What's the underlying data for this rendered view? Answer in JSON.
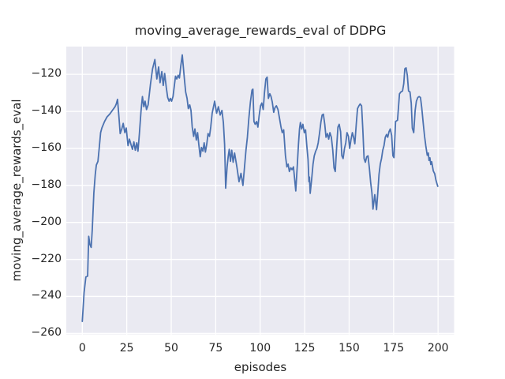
{
  "figure": {
    "title": "moving_average_rewards_eval of DDPG",
    "xlabel": "episodes",
    "ylabel": "moving_average_rewards_eval"
  },
  "chart_data": {
    "type": "line",
    "title": "moving_average_rewards_eval of DDPG",
    "xlabel": "episodes",
    "ylabel": "moving_average_rewards_eval",
    "xlim": [
      -9,
      209
    ],
    "ylim": [
      -260.5,
      -105
    ],
    "x_ticks": [
      0,
      25,
      50,
      75,
      100,
      125,
      150,
      175,
      200
    ],
    "y_ticks": [
      -120,
      -140,
      -160,
      -180,
      -200,
      -220,
      -240,
      -260
    ],
    "grid": true,
    "legend": false,
    "colors": {
      "figure_background": "#ffffff",
      "axes_background": "#eaeaf2",
      "grid": "#ffffff",
      "line": "#4c72b0",
      "text": "#262626"
    },
    "series": [
      {
        "name": "moving_average_rewards_eval",
        "color": "#4c72b0",
        "points": [
          [
            0,
            -253.5
          ],
          [
            1,
            -238
          ],
          [
            2,
            -229.5
          ],
          [
            3,
            -229
          ],
          [
            3.6,
            -207.5
          ],
          [
            4.3,
            -212
          ],
          [
            5,
            -213.5
          ],
          [
            5.6,
            -204
          ],
          [
            6.5,
            -184
          ],
          [
            7.3,
            -174
          ],
          [
            7.9,
            -169
          ],
          [
            8.8,
            -167
          ],
          [
            9.5,
            -160
          ],
          [
            10.3,
            -151.5
          ],
          [
            11,
            -149
          ],
          [
            12.5,
            -145.5
          ],
          [
            13.9,
            -143
          ],
          [
            15.4,
            -141.5
          ],
          [
            16.9,
            -139.5
          ],
          [
            18.4,
            -137.5
          ],
          [
            19.1,
            -136
          ],
          [
            19.8,
            -133.5
          ],
          [
            20.6,
            -143
          ],
          [
            21.3,
            -152
          ],
          [
            22.2,
            -149.5
          ],
          [
            23,
            -146.5
          ],
          [
            23.9,
            -151.5
          ],
          [
            24.7,
            -149
          ],
          [
            25.7,
            -158.5
          ],
          [
            26.5,
            -155
          ],
          [
            27.4,
            -158
          ],
          [
            28.2,
            -160.5
          ],
          [
            29,
            -156.5
          ],
          [
            29.8,
            -161
          ],
          [
            30.6,
            -157
          ],
          [
            31.3,
            -161.5
          ],
          [
            32.1,
            -152
          ],
          [
            33,
            -140
          ],
          [
            33.8,
            -132
          ],
          [
            34.6,
            -137.5
          ],
          [
            35.3,
            -134.5
          ],
          [
            36.1,
            -139
          ],
          [
            37,
            -136.5
          ],
          [
            38.3,
            -125.5
          ],
          [
            39.5,
            -117
          ],
          [
            40.8,
            -112
          ],
          [
            41.9,
            -122.5
          ],
          [
            42.9,
            -116
          ],
          [
            43.7,
            -124.5
          ],
          [
            44.7,
            -118.5
          ],
          [
            45.5,
            -126
          ],
          [
            46.3,
            -119.5
          ],
          [
            47.2,
            -127
          ],
          [
            48,
            -132.5
          ],
          [
            48.8,
            -134.5
          ],
          [
            49.5,
            -133
          ],
          [
            50.2,
            -134.5
          ],
          [
            51,
            -132
          ],
          [
            51.7,
            -126.5
          ],
          [
            52.4,
            -121
          ],
          [
            53.1,
            -122.5
          ],
          [
            53.9,
            -120.5
          ],
          [
            54.6,
            -122
          ],
          [
            55.3,
            -116
          ],
          [
            56.2,
            -109.5
          ],
          [
            57.4,
            -122.5
          ],
          [
            58.1,
            -129.5
          ],
          [
            58.9,
            -133
          ],
          [
            59.6,
            -138.5
          ],
          [
            60.4,
            -136.5
          ],
          [
            61.1,
            -139.5
          ],
          [
            61.8,
            -148.5
          ],
          [
            62.6,
            -153.5
          ],
          [
            63.3,
            -149.5
          ],
          [
            64.1,
            -155.5
          ],
          [
            64.8,
            -151.5
          ],
          [
            65.5,
            -158
          ],
          [
            66.3,
            -164.5
          ],
          [
            67,
            -159.5
          ],
          [
            67.8,
            -161.5
          ],
          [
            68.5,
            -157
          ],
          [
            69.2,
            -162
          ],
          [
            70,
            -157.5
          ],
          [
            70.7,
            -152
          ],
          [
            71.5,
            -153.5
          ],
          [
            72.2,
            -148.5
          ],
          [
            73,
            -141
          ],
          [
            74.4,
            -134.5
          ],
          [
            75.5,
            -141
          ],
          [
            76.5,
            -137.5
          ],
          [
            77.5,
            -142
          ],
          [
            78.5,
            -139.5
          ],
          [
            79.3,
            -146
          ],
          [
            80,
            -158
          ],
          [
            80.6,
            -181.5
          ],
          [
            81.4,
            -170
          ],
          [
            82,
            -164.5
          ],
          [
            82.6,
            -160.5
          ],
          [
            83.3,
            -167
          ],
          [
            84,
            -161
          ],
          [
            84.8,
            -167.5
          ],
          [
            85.6,
            -162.5
          ],
          [
            86.9,
            -170
          ],
          [
            88.1,
            -178
          ],
          [
            89.2,
            -173.5
          ],
          [
            90.3,
            -180
          ],
          [
            91.2,
            -170
          ],
          [
            92,
            -161
          ],
          [
            92.8,
            -154
          ],
          [
            93.6,
            -144
          ],
          [
            94.5,
            -135
          ],
          [
            95.4,
            -128.5
          ],
          [
            95.9,
            -128
          ],
          [
            96.5,
            -145.5
          ],
          [
            97.2,
            -147
          ],
          [
            98,
            -145.5
          ],
          [
            98.7,
            -148.5
          ],
          [
            99.4,
            -142.5
          ],
          [
            100.2,
            -137
          ],
          [
            100.9,
            -135.5
          ],
          [
            101.7,
            -139
          ],
          [
            102.4,
            -130
          ],
          [
            103.2,
            -122.5
          ],
          [
            103.9,
            -121.5
          ],
          [
            104.6,
            -133
          ],
          [
            105.4,
            -130.5
          ],
          [
            106.1,
            -132
          ],
          [
            106.8,
            -135
          ],
          [
            107.6,
            -140.5
          ],
          [
            108.3,
            -138
          ],
          [
            109.1,
            -137
          ],
          [
            110,
            -139
          ],
          [
            110.9,
            -144
          ],
          [
            111.7,
            -148.5
          ],
          [
            112.4,
            -151.5
          ],
          [
            113.2,
            -150
          ],
          [
            114.2,
            -164
          ],
          [
            115,
            -170
          ],
          [
            115.7,
            -168.5
          ],
          [
            116.4,
            -172.5
          ],
          [
            117.2,
            -170.5
          ],
          [
            117.9,
            -171.5
          ],
          [
            118.7,
            -170
          ],
          [
            120,
            -183
          ],
          [
            120.8,
            -170
          ],
          [
            121.5,
            -158
          ],
          [
            122.1,
            -149.5
          ],
          [
            122.6,
            -146
          ],
          [
            123.3,
            -149.5
          ],
          [
            124,
            -147
          ],
          [
            124.8,
            -151.5
          ],
          [
            125.5,
            -150
          ],
          [
            126.2,
            -158.5
          ],
          [
            126.9,
            -166
          ],
          [
            127.4,
            -178
          ],
          [
            127.7,
            -175.5
          ],
          [
            128.1,
            -184.3
          ],
          [
            128.9,
            -177
          ],
          [
            129.7,
            -168.5
          ],
          [
            130.4,
            -164
          ],
          [
            131.2,
            -161.5
          ],
          [
            131.9,
            -160
          ],
          [
            132.6,
            -157
          ],
          [
            133.4,
            -151.5
          ],
          [
            134.1,
            -146
          ],
          [
            134.8,
            -142
          ],
          [
            135.5,
            -141.5
          ],
          [
            136.3,
            -147
          ],
          [
            137,
            -154
          ],
          [
            137.8,
            -152
          ],
          [
            138.5,
            -155
          ],
          [
            139.2,
            -151.5
          ],
          [
            140,
            -154
          ],
          [
            140.8,
            -161
          ],
          [
            141.5,
            -170.5
          ],
          [
            142.2,
            -172.5
          ],
          [
            143,
            -159
          ],
          [
            143.7,
            -148.5
          ],
          [
            144.4,
            -147
          ],
          [
            145.2,
            -151
          ],
          [
            145.9,
            -164
          ],
          [
            146.6,
            -165.5
          ],
          [
            147.4,
            -160
          ],
          [
            148.1,
            -157
          ],
          [
            148.8,
            -151.5
          ],
          [
            149.6,
            -153.5
          ],
          [
            150.3,
            -160
          ],
          [
            151,
            -155.5
          ],
          [
            151.8,
            -151.5
          ],
          [
            152.5,
            -154
          ],
          [
            153.2,
            -157.5
          ],
          [
            154,
            -147
          ],
          [
            154.7,
            -138.5
          ],
          [
            155.5,
            -137
          ],
          [
            156.2,
            -136
          ],
          [
            157,
            -137
          ],
          [
            157.7,
            -150
          ],
          [
            158.4,
            -165.5
          ],
          [
            159.1,
            -167.5
          ],
          [
            159.9,
            -164.5
          ],
          [
            160.6,
            -164
          ],
          [
            161.4,
            -171
          ],
          [
            162.1,
            -178.5
          ],
          [
            162.8,
            -184
          ],
          [
            163.4,
            -192.8
          ],
          [
            164.4,
            -185
          ],
          [
            165.4,
            -193.1
          ],
          [
            166.1,
            -184
          ],
          [
            166.8,
            -174
          ],
          [
            167.5,
            -168.5
          ],
          [
            168.2,
            -165.5
          ],
          [
            168.9,
            -161
          ],
          [
            169.6,
            -158.5
          ],
          [
            170.3,
            -154
          ],
          [
            171,
            -152.5
          ],
          [
            171.7,
            -154
          ],
          [
            172.4,
            -151
          ],
          [
            173.1,
            -149.5
          ],
          [
            173.9,
            -153
          ],
          [
            174.6,
            -164
          ],
          [
            175.2,
            -165
          ],
          [
            176.1,
            -145.5
          ],
          [
            177.2,
            -144.8
          ],
          [
            178.3,
            -130.5
          ],
          [
            179.1,
            -129.5
          ],
          [
            180,
            -129
          ],
          [
            180.7,
            -125
          ],
          [
            181.3,
            -117
          ],
          [
            182,
            -116.5
          ],
          [
            182.7,
            -120.5
          ],
          [
            183.4,
            -129
          ],
          [
            184.2,
            -129.5
          ],
          [
            184.9,
            -135.5
          ],
          [
            185.5,
            -149
          ],
          [
            186.3,
            -151.5
          ],
          [
            187.1,
            -139.5
          ],
          [
            187.8,
            -134.5
          ],
          [
            188.6,
            -132.5
          ],
          [
            189.3,
            -132
          ],
          [
            190.1,
            -132.5
          ],
          [
            190.8,
            -138
          ],
          [
            191.6,
            -146
          ],
          [
            192.4,
            -153.5
          ],
          [
            193.1,
            -158.7
          ],
          [
            193.9,
            -163.7
          ],
          [
            194.5,
            -162.5
          ],
          [
            194.9,
            -166.5
          ],
          [
            195.4,
            -165.1
          ],
          [
            195.9,
            -168.7
          ],
          [
            196.4,
            -167.2
          ],
          [
            197.3,
            -172.2
          ],
          [
            198.1,
            -173.7
          ],
          [
            198.8,
            -177.2
          ],
          [
            199.8,
            -180.5
          ]
        ]
      }
    ]
  }
}
